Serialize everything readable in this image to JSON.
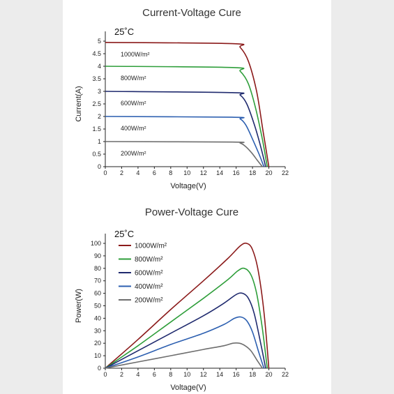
{
  "chart_data": [
    {
      "type": "line",
      "title": "Current-Voltage Cure",
      "annotation": "25˚C",
      "xlabel": "Voltage(V)",
      "ylabel": "Current(A)",
      "xlim": [
        0,
        22
      ],
      "ylim": [
        0,
        5
      ],
      "xticks": [
        "0",
        "2",
        "4",
        "6",
        "8",
        "10",
        "12",
        "14",
        "16",
        "18",
        "20",
        "22"
      ],
      "yticks": [
        "0",
        "0.5",
        "1",
        "1.5",
        "2",
        "2.5",
        "3",
        "3.5",
        "4",
        "4.5",
        "5"
      ],
      "grid": false,
      "legend": "inline labels above curves",
      "series": [
        {
          "name": "1000W/m²",
          "color": "#8b1a1a",
          "x": [
            0,
            15.5,
            16.5,
            17.5,
            18.5,
            19.3,
            20.0
          ],
          "y": [
            4.95,
            4.9,
            4.75,
            4.2,
            3.0,
            1.4,
            0
          ]
        },
        {
          "name": "800W/m²",
          "color": "#2e9e3a",
          "x": [
            0,
            15.5,
            16.5,
            17.5,
            18.4,
            19.2,
            19.8
          ],
          "y": [
            4.0,
            3.95,
            3.8,
            3.3,
            2.3,
            1.1,
            0
          ]
        },
        {
          "name": "600W/m²",
          "color": "#1f2a6e",
          "x": [
            0,
            15.5,
            16.5,
            17.3,
            18.2,
            19.0,
            19.6
          ],
          "y": [
            3.0,
            2.95,
            2.85,
            2.5,
            1.7,
            0.8,
            0
          ]
        },
        {
          "name": "400W/m²",
          "color": "#2c5fb0",
          "x": [
            0,
            15.5,
            16.5,
            17.2,
            18.0,
            18.8,
            19.4
          ],
          "y": [
            2.0,
            1.97,
            1.9,
            1.65,
            1.1,
            0.5,
            0
          ]
        },
        {
          "name": "200W/m²",
          "color": "#6e6e6e",
          "x": [
            0,
            15.5,
            16.5,
            17.1,
            17.9,
            18.6,
            19.2
          ],
          "y": [
            1.0,
            0.98,
            0.94,
            0.82,
            0.55,
            0.25,
            0
          ]
        }
      ]
    },
    {
      "type": "line",
      "title": "Power-Voltage Cure",
      "annotation": "25˚C",
      "xlabel": "Voltage(V)",
      "ylabel": "Power(W)",
      "xlim": [
        0,
        22
      ],
      "ylim": [
        0,
        100
      ],
      "xticks": [
        "0",
        "2",
        "4",
        "6",
        "8",
        "10",
        "12",
        "14",
        "16",
        "18",
        "20",
        "22"
      ],
      "yticks": [
        "0",
        "10",
        "20",
        "30",
        "40",
        "50",
        "60",
        "70",
        "80",
        "90",
        "100"
      ],
      "grid": false,
      "legend": "top-left",
      "series": [
        {
          "name": "1000W/m²",
          "color": "#8b1a1a",
          "x": [
            0,
            4,
            8,
            12,
            15,
            16.5,
            17.3,
            18,
            18.7,
            19.4,
            20.0
          ],
          "y": [
            0,
            23,
            47,
            70,
            88,
            98,
            100,
            95,
            78,
            45,
            0
          ]
        },
        {
          "name": "800W/m²",
          "color": "#2e9e3a",
          "x": [
            0,
            4,
            8,
            12,
            15,
            16.2,
            17.0,
            17.8,
            18.5,
            19.2,
            19.8
          ],
          "y": [
            0,
            18,
            37,
            56,
            71,
            78,
            80,
            75,
            60,
            32,
            0
          ]
        },
        {
          "name": "600W/m²",
          "color": "#1f2a6e",
          "x": [
            0,
            4,
            8,
            12,
            14.5,
            16.0,
            16.8,
            17.5,
            18.2,
            19.0,
            19.6
          ],
          "y": [
            0,
            14,
            28,
            42,
            52,
            59,
            60,
            56,
            44,
            20,
            0
          ]
        },
        {
          "name": "400W/m²",
          "color": "#2c5fb0",
          "x": [
            0,
            4,
            8,
            12,
            14.5,
            15.8,
            16.6,
            17.3,
            18.0,
            18.8,
            19.4
          ],
          "y": [
            0,
            9,
            19,
            28,
            35,
            40,
            41,
            38,
            29,
            12,
            0
          ]
        },
        {
          "name": "200W/m²",
          "color": "#6e6e6e",
          "x": [
            0,
            4,
            8,
            12,
            14.5,
            15.6,
            16.4,
            17.1,
            17.8,
            18.6,
            19.2
          ],
          "y": [
            0,
            5,
            10,
            15,
            18,
            20,
            20,
            18,
            14,
            6,
            0
          ]
        }
      ]
    }
  ]
}
